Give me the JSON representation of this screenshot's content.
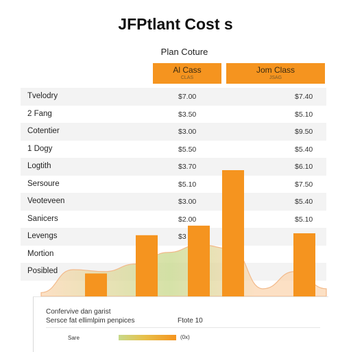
{
  "chart_data": {
    "type": "table",
    "title": "JFPtlant Cost s",
    "subtitle": "Plan Coture",
    "columns": [
      {
        "name": "Al Cass",
        "sub": "CLAS"
      },
      {
        "name": "Jom Class",
        "sub": "JSAG"
      }
    ],
    "rows": [
      {
        "label": "Tvelodry",
        "values": [
          "$7.00",
          "$7.40"
        ]
      },
      {
        "label": "2 Fang",
        "values": [
          "$3.50",
          "$5.10"
        ]
      },
      {
        "label": "Cotentier",
        "values": [
          "$3.00",
          "$9.50"
        ]
      },
      {
        "label": "1 Dogy",
        "values": [
          "$5.50",
          "$5.40"
        ]
      },
      {
        "label": "Logtith",
        "values": [
          "$3.70",
          "$6.10"
        ]
      },
      {
        "label": "Sersoure",
        "values": [
          "$5.10",
          "$7.50"
        ]
      },
      {
        "label": "Veoteveen",
        "values": [
          "$3.00",
          "$5.40"
        ]
      },
      {
        "label": "Sanicers",
        "values": [
          "$2.00",
          "$5.10"
        ]
      },
      {
        "label": "Levengs",
        "values": [
          "$3",
          "$2.10"
        ]
      },
      {
        "label": "Mortion",
        "values": [
          "",
          ""
        ]
      },
      {
        "label": "Posibled",
        "values": [
          "",
          ""
        ]
      }
    ],
    "overlay_bars": {
      "type": "bar",
      "values": [
        1.2,
        3.2,
        3.7,
        6.6,
        3.3
      ],
      "ylim": [
        0,
        7.5
      ],
      "color": "#f5941f"
    },
    "overlay_area": {
      "type": "area",
      "values": [
        0.2,
        1.4,
        1.3,
        1.7,
        2.3,
        2.7,
        2.5,
        0.4,
        1.3,
        0.4
      ],
      "colors": [
        "#c7d98a",
        "#fbd6b0"
      ]
    }
  },
  "footer": {
    "note1": "Confervive dan garist",
    "note2": "Sersce fat ellimlpim penpices",
    "note3": "Ftote 10",
    "legend_label": "Sare",
    "legend_value": "(0x)"
  }
}
